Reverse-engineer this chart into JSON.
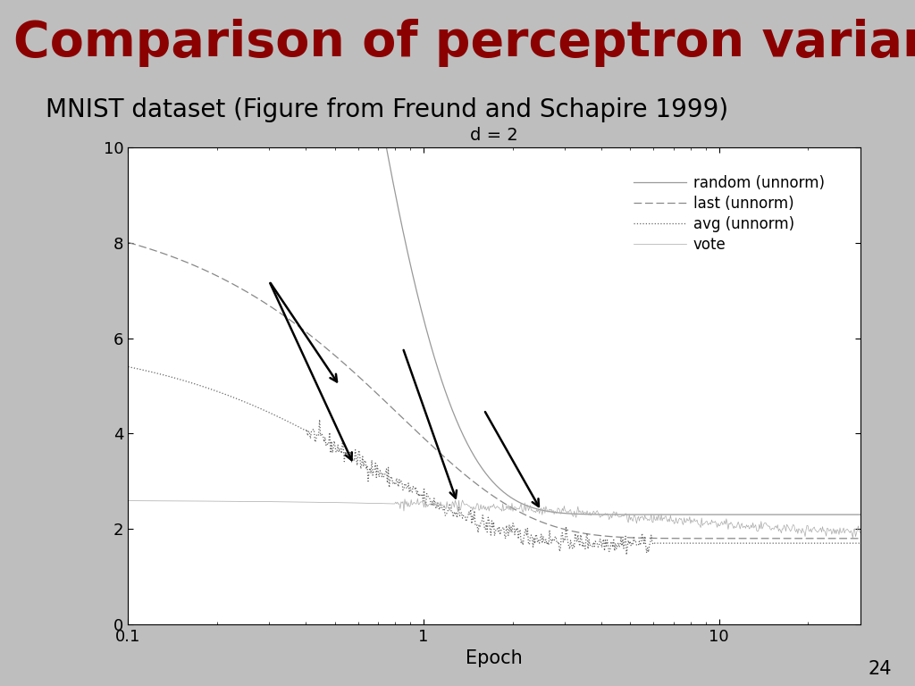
{
  "title": "Comparison of perceptron variants",
  "subtitle": "MNIST dataset (Figure from Freund and Schapire 1999)",
  "plot_title": "d = 2",
  "xlabel": "Epoch",
  "title_color": "#8B0000",
  "title_fontsize": 40,
  "subtitle_fontsize": 20,
  "background_color": "#BEBEBE",
  "title_bg_color": "#A8A8A8",
  "plot_bg_color": "#FFFFFF",
  "xlim": [
    0.1,
    30
  ],
  "ylim": [
    0,
    10
  ],
  "yticks": [
    0,
    2,
    4,
    6,
    8,
    10
  ],
  "xtick_labels": [
    "0.1",
    "1",
    "10"
  ],
  "xtick_vals": [
    0.1,
    1.0,
    10.0
  ],
  "legend_labels": [
    "random (unnorm)",
    "last (unnorm)",
    "avg (unnorm)",
    "vote"
  ],
  "page_number": "24",
  "random_color": "#999999",
  "last_color": "#888888",
  "avg_color": "#666666",
  "vote_color": "#aaaaaa"
}
